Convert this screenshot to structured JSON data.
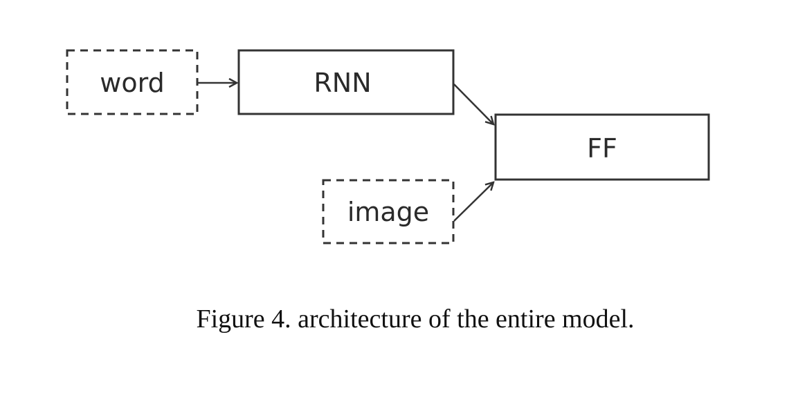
{
  "diagram": {
    "nodes": {
      "word": {
        "label": "word",
        "style": "dashed"
      },
      "rnn": {
        "label": "RNN",
        "style": "solid"
      },
      "ff": {
        "label": "FF",
        "style": "solid"
      },
      "image": {
        "label": "image",
        "style": "dashed"
      }
    },
    "edges": [
      {
        "from": "word",
        "to": "rnn"
      },
      {
        "from": "rnn",
        "to": "ff"
      },
      {
        "from": "image",
        "to": "ff"
      }
    ],
    "stroke_color": "#333333"
  },
  "caption": "Figure 4. architecture of the entire model."
}
